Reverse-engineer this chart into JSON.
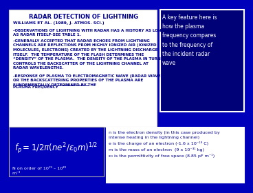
{
  "bg_color": "#0000bb",
  "title": "RADAR DETECTION OF LIGHTNING",
  "callout_text": "A key feature here is\nhow the plasma\nfrequency compares\nto the frequency of\nthe incident radar\nwave",
  "n_order_text": "N on order of 10¹⁹ – 10²⁰\nm⁻³",
  "variables_text": "n is the electron density (in this case produced by\nintense heating in the lightning channel)\ne is the charge of an electron (-1.6 x 10⁻¹⁹ C)\nm is the mass of an electron  (9 x 10⁻³¹ kg)\nε₀ is the permittivity of free space (8.85 pF m⁻¹)",
  "bullet1": "-OBSERVATIONS OF LIGHTNING WITH RADAR HAS A HISTORY AS LONG\nAS RADAR ITSELF-SEE TABLE 1.",
  "bullet2": "-GENERALLY ACCEPTED THAT RADAR ECHOES FROM LIGHTNING\nCHANNELS ARE REFLECTIONS FROM HIGHLY IONIZED AIR (IONIZED\nMOLECULES, ELECTRONS) CREATED BY THE LIGHTNING DISCHARGE\nITSELF.  THE TEMPERATURE OF THE FLASH DETERMINES THE\n“DENSITY” OF THE PLASMA.  THE DENSITY OF THE PLASMA IN TURN\nCONTROLS THE BACKSCATTER OF THE LIGHTNING CHANNEL AT\nRADAR WAVELENGTHS.",
  "bullet3a": "-RESPONSE OF PLASMA TO ELECTROMAGNETIC WAVE (RADAR WAVE),\nOR THE BACKSCATTERING PROPERTIES OF THE PLASMA ARE\nFUNDEMENTALLY DETERMINED BY THE ",
  "bullet3b": "PLASMA FREQUENCY",
  "williams": "WILLIAMS ET AL. (1989, J. ATMOS. SCI.)"
}
